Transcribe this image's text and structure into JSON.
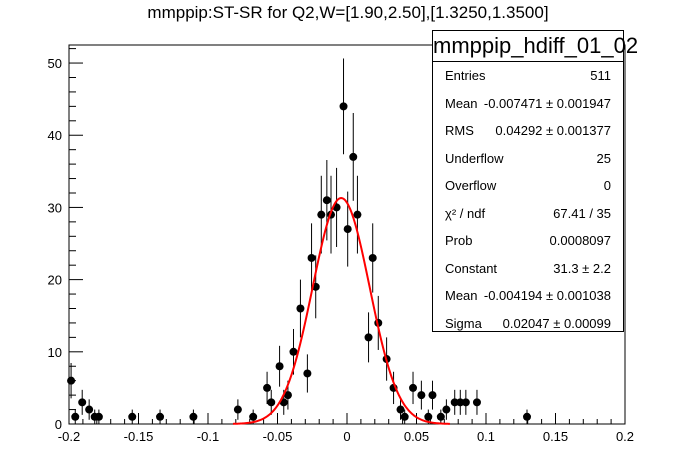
{
  "chart_data": {
    "type": "scatter",
    "title": "mmppip:ST-SR for Q2,W=[1.90,2.50],[1.3250,1.3500]",
    "xlim": [
      -0.2,
      0.2
    ],
    "ylim": [
      0,
      52.5
    ],
    "x_ticks": [
      "-0.2",
      "-0.15",
      "-0.1",
      "-0.05",
      "0",
      "0.05",
      "0.1",
      "0.15",
      "0.2"
    ],
    "y_ticks": [
      "0",
      "10",
      "20",
      "30",
      "40",
      "50"
    ],
    "grid": false,
    "series": [
      {
        "type": "errorbar",
        "points": [
          {
            "x": -0.1985,
            "y": 6
          },
          {
            "x": -0.1955,
            "y": 1
          },
          {
            "x": -0.1905,
            "y": 3
          },
          {
            "x": -0.1855,
            "y": 2
          },
          {
            "x": -0.1815,
            "y": 1
          },
          {
            "x": -0.1785,
            "y": 1
          },
          {
            "x": -0.1545,
            "y": 1
          },
          {
            "x": -0.1345,
            "y": 1
          },
          {
            "x": -0.1105,
            "y": 1
          },
          {
            "x": -0.0785,
            "y": 2
          },
          {
            "x": -0.0675,
            "y": 1
          },
          {
            "x": -0.0575,
            "y": 5
          },
          {
            "x": -0.0545,
            "y": 3
          },
          {
            "x": -0.0485,
            "y": 8
          },
          {
            "x": -0.0455,
            "y": 3
          },
          {
            "x": -0.0425,
            "y": 4
          },
          {
            "x": -0.0385,
            "y": 10
          },
          {
            "x": -0.0335,
            "y": 16
          },
          {
            "x": -0.0285,
            "y": 7
          },
          {
            "x": -0.0255,
            "y": 23
          },
          {
            "x": -0.0225,
            "y": 19
          },
          {
            "x": -0.0185,
            "y": 29
          },
          {
            "x": -0.0145,
            "y": 31
          },
          {
            "x": -0.0115,
            "y": 29
          },
          {
            "x": -0.0075,
            "y": 30
          },
          {
            "x": -0.0025,
            "y": 44
          },
          {
            "x": 0.0005,
            "y": 27
          },
          {
            "x": 0.0045,
            "y": 37
          },
          {
            "x": 0.0075,
            "y": 29
          },
          {
            "x": 0.0155,
            "y": 12
          },
          {
            "x": 0.0185,
            "y": 23
          },
          {
            "x": 0.0225,
            "y": 14
          },
          {
            "x": 0.0285,
            "y": 9
          },
          {
            "x": 0.0335,
            "y": 5
          },
          {
            "x": 0.0385,
            "y": 2
          },
          {
            "x": 0.0415,
            "y": 1
          },
          {
            "x": 0.0475,
            "y": 5
          },
          {
            "x": 0.0535,
            "y": 4
          },
          {
            "x": 0.0585,
            "y": 1
          },
          {
            "x": 0.0615,
            "y": 4
          },
          {
            "x": 0.0675,
            "y": 1
          },
          {
            "x": 0.0715,
            "y": 2
          },
          {
            "x": 0.0775,
            "y": 3
          },
          {
            "x": 0.0815,
            "y": 3
          },
          {
            "x": 0.0855,
            "y": 3
          },
          {
            "x": 0.0935,
            "y": 3
          },
          {
            "x": 0.1295,
            "y": 1
          }
        ]
      },
      {
        "type": "gaussian-fit",
        "constant": 31.3,
        "mean": -0.004194,
        "sigma": 0.02047,
        "color": "#ff0000"
      }
    ],
    "stats_box": {
      "name": "mmppip_hdiff_01_02",
      "rows": [
        {
          "label": "Entries",
          "value": "511"
        },
        {
          "label": "Mean",
          "value": "-0.007471 ± 0.001947"
        },
        {
          "label": "RMS",
          "value": "0.04292 ± 0.001377"
        },
        {
          "label": "Underflow",
          "value": "25"
        },
        {
          "label": "Overflow",
          "value": "0"
        },
        {
          "label": "χ² / ndf",
          "value": "67.41 / 35"
        },
        {
          "label": "Prob",
          "value": "0.0008097"
        },
        {
          "label": "Constant",
          "value": "31.3 ± 2.2"
        },
        {
          "label": "Mean",
          "value": "-0.004194 ± 0.001038"
        },
        {
          "label": "Sigma",
          "value": "0.02047 ± 0.00099"
        }
      ]
    }
  }
}
